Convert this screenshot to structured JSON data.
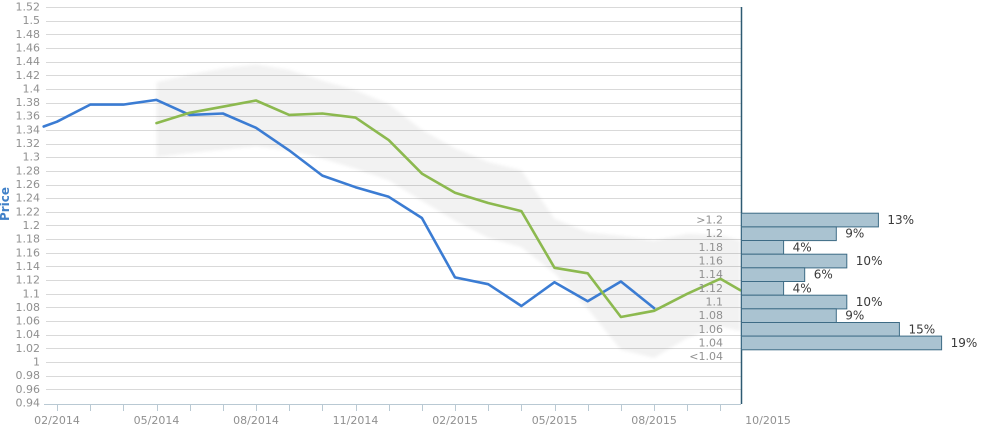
{
  "colors": {
    "background": "#ffffff",
    "grid": "#d9d9d9",
    "axis": "#b9c9d3",
    "tick_label": "#909090",
    "price_label": "#4080c8",
    "history_line": "#3b7cd3",
    "forecast_line": "#8cb94f",
    "band_fill": "#000000",
    "bar_fill": "#aac3d1",
    "bar_stroke": "#3d6b85",
    "divider": "#2d5a72",
    "pct_label": "#3a3a3a"
  },
  "chart_data": [
    {
      "type": "line",
      "title": "",
      "ylabel": "Price",
      "ylim": [
        0.94,
        1.52
      ],
      "y_step": 0.02,
      "grid": true,
      "y_tick_labels": [
        "1.52",
        "1.5",
        "1.48",
        "1.46",
        "1.44",
        "1.42",
        "1.4",
        "1.38",
        "1.36",
        "1.34",
        "1.32",
        "1.3",
        "1.28",
        "1.26",
        "1.24",
        "1.22",
        "1.2",
        "1.18",
        "1.16",
        "1.14",
        "1.12",
        "1.1",
        "1.08",
        "1.06",
        "1.04",
        "1.02",
        "1",
        "0.98",
        "0.96",
        "0.94"
      ],
      "x_unit": "months_after_02_2014",
      "x_tick_labels": [
        {
          "m": 0,
          "label": "02/2014"
        },
        {
          "m": 3,
          "label": "05/2014"
        },
        {
          "m": 6,
          "label": "08/2014"
        },
        {
          "m": 9,
          "label": "11/2014"
        },
        {
          "m": 12,
          "label": "02/2015"
        },
        {
          "m": 15,
          "label": "05/2015"
        },
        {
          "m": 18,
          "label": "08/2015"
        }
      ],
      "series": [
        {
          "id": "price-history",
          "name": "historical price",
          "color": "#3b7cd3",
          "points": [
            [
              -0.4,
              1.345
            ],
            [
              0,
              1.352
            ],
            [
              1,
              1.377
            ],
            [
              2,
              1.377
            ],
            [
              3,
              1.384
            ],
            [
              4,
              1.362
            ],
            [
              5,
              1.364
            ],
            [
              6,
              1.343
            ],
            [
              7,
              1.31
            ],
            [
              8,
              1.273
            ],
            [
              9,
              1.256
            ],
            [
              10,
              1.242
            ],
            [
              11,
              1.211
            ],
            [
              12,
              1.124
            ],
            [
              13,
              1.114
            ],
            [
              14,
              1.082
            ],
            [
              15,
              1.117
            ],
            [
              16,
              1.089
            ],
            [
              17,
              1.118
            ],
            [
              18,
              1.079
            ]
          ]
        },
        {
          "id": "forecast",
          "name": "forecast",
          "color": "#8cb94f",
          "points": [
            [
              3,
              1.35
            ],
            [
              4,
              1.365
            ],
            [
              5,
              1.374
            ],
            [
              6,
              1.383
            ],
            [
              7,
              1.362
            ],
            [
              8,
              1.364
            ],
            [
              9,
              1.358
            ],
            [
              10,
              1.325
            ],
            [
              11,
              1.276
            ],
            [
              12,
              1.248
            ],
            [
              13,
              1.233
            ],
            [
              14,
              1.221
            ],
            [
              15,
              1.138
            ],
            [
              16,
              1.13
            ],
            [
              17,
              1.066
            ],
            [
              18,
              1.075
            ],
            [
              19,
              1.1
            ],
            [
              20,
              1.122
            ],
            [
              20.6,
              1.105
            ]
          ]
        }
      ],
      "band": {
        "id": "forecast-range",
        "name": "forecast uncertainty band",
        "points_m_lo_hi": [
          [
            3,
            1.3,
            1.41
          ],
          [
            4,
            1.306,
            1.421
          ],
          [
            5,
            1.311,
            1.43
          ],
          [
            6,
            1.316,
            1.436
          ],
          [
            7,
            1.31,
            1.428
          ],
          [
            8,
            1.298,
            1.412
          ],
          [
            9,
            1.283,
            1.398
          ],
          [
            10,
            1.266,
            1.378
          ],
          [
            11,
            1.236,
            1.34
          ],
          [
            12,
            1.207,
            1.313
          ],
          [
            13,
            1.182,
            1.293
          ],
          [
            14,
            1.168,
            1.281
          ],
          [
            15,
            1.13,
            1.21
          ],
          [
            16,
            1.078,
            1.19
          ],
          [
            17,
            1.018,
            1.185
          ],
          [
            18,
            1.006,
            1.178
          ],
          [
            19,
            1.035,
            1.188
          ],
          [
            20,
            1.052,
            1.186
          ],
          [
            20.6,
            1.045,
            1.178
          ]
        ]
      }
    },
    {
      "type": "bar",
      "orientation": "horizontal",
      "title": "",
      "date_label": "10/2015",
      "categories": [
        ">1.2",
        "1.2",
        "1.18",
        "1.16",
        "1.14",
        "1.12",
        "1.1",
        "1.08",
        "1.06",
        "1.04",
        "<1.04"
      ],
      "values": [
        13,
        9,
        4,
        10,
        6,
        4,
        10,
        9,
        15,
        19,
        null
      ],
      "value_labels": [
        "13%",
        "9%",
        "4%",
        "10%",
        "6%",
        "4%",
        "10%",
        "9%",
        "15%",
        "19%",
        ""
      ]
    }
  ]
}
